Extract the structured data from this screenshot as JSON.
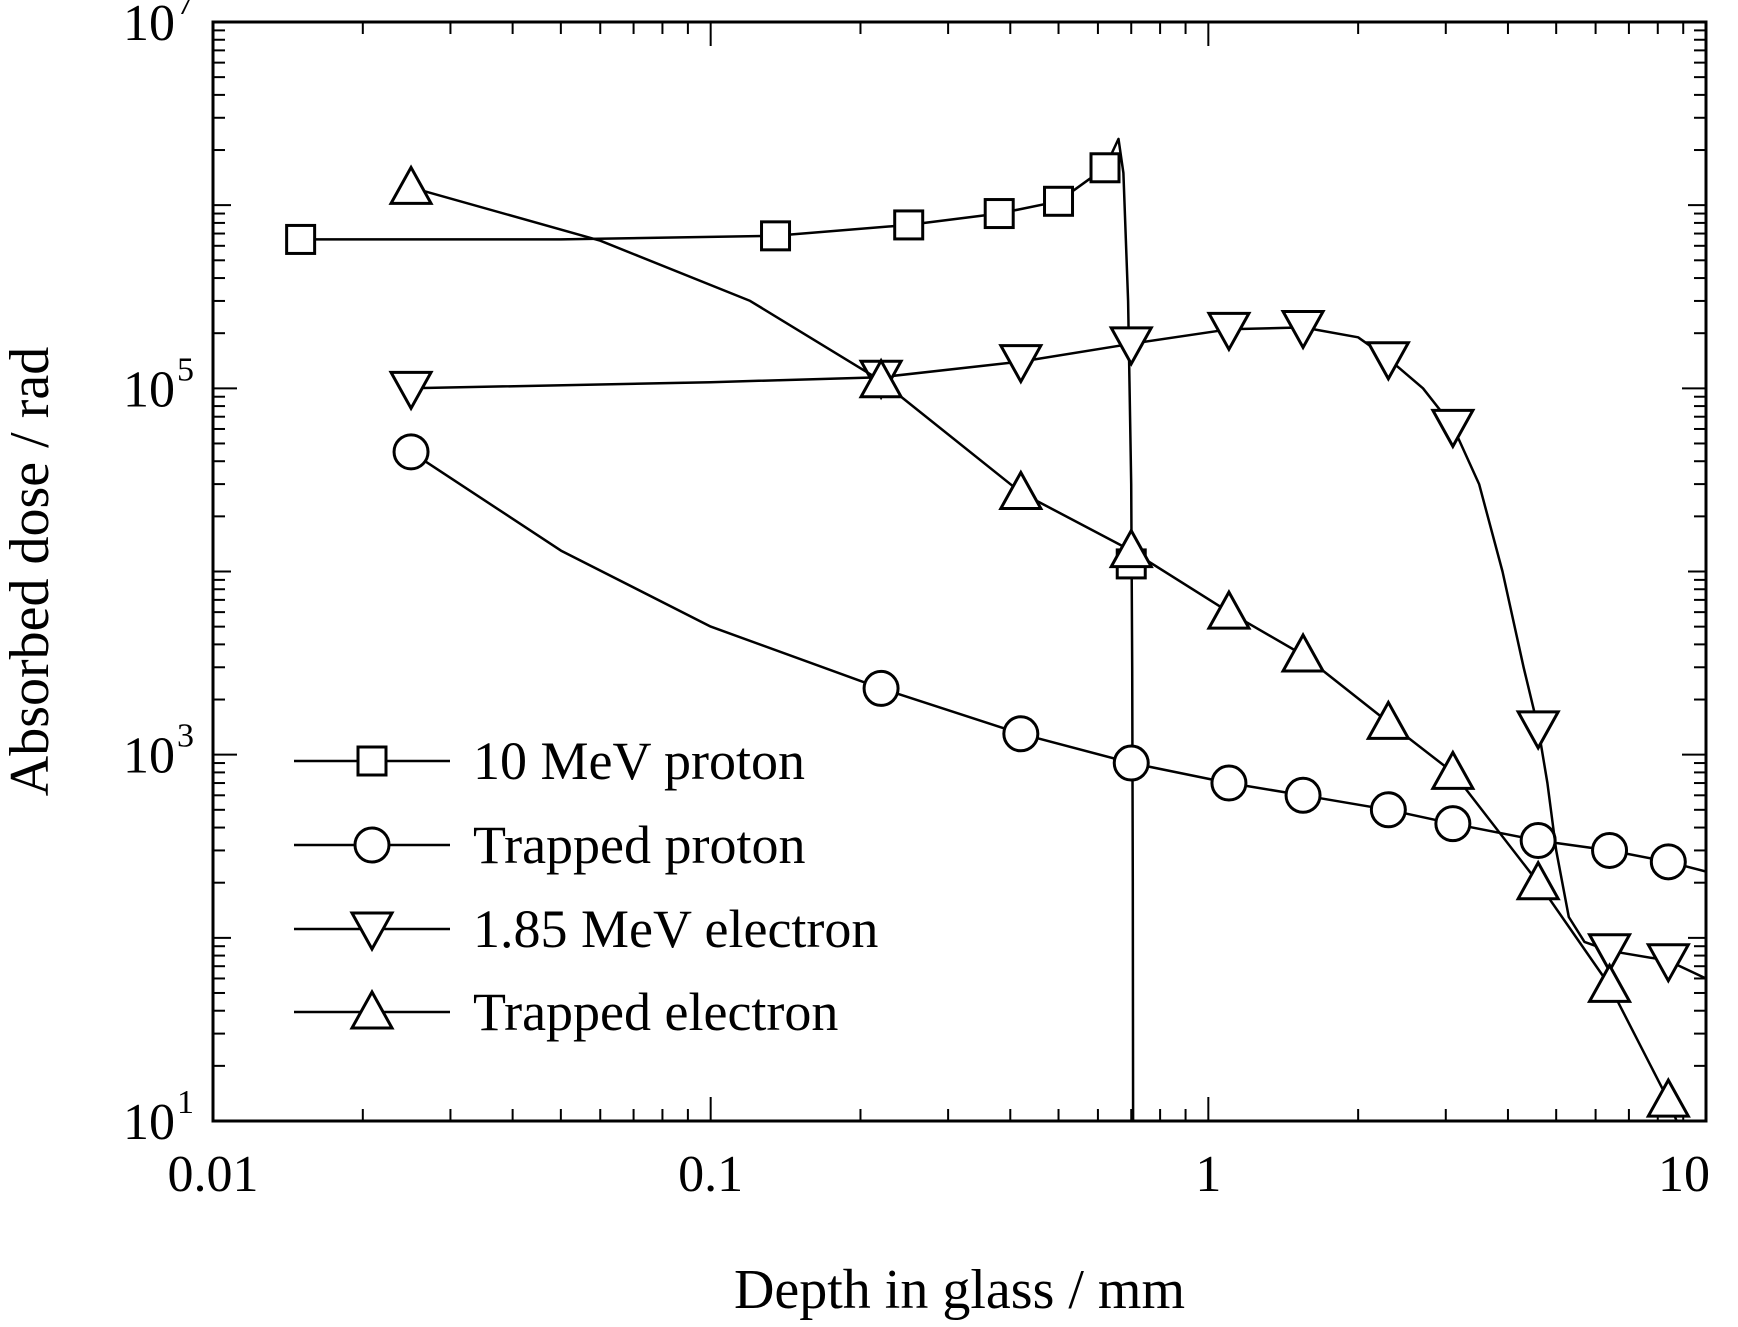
{
  "chart_data": {
    "type": "line",
    "xscale": "log",
    "yscale": "log",
    "xlim": [
      0.01,
      10
    ],
    "ylim": [
      10,
      10000000
    ],
    "xlabel": "Depth in glass / mm",
    "ylabel": "Absorbed dose / rad",
    "x_ticks": [
      {
        "value": 0.01,
        "label": "0.01"
      },
      {
        "value": 0.1,
        "label": "0.1"
      },
      {
        "value": 1,
        "label": "1"
      },
      {
        "value": 10,
        "label": "10"
      }
    ],
    "y_ticks": [
      {
        "value": 10,
        "base": "10",
        "exp": "1"
      },
      {
        "value": 1000,
        "base": "10",
        "exp": "3"
      },
      {
        "value": 100000,
        "base": "10",
        "exp": "5"
      },
      {
        "value": 10000000,
        "base": "10",
        "exp": "7"
      }
    ],
    "grid": false,
    "legend_position": "bottom-left",
    "series": [
      {
        "name": "10 MeV proton",
        "marker": "square",
        "points": [
          [
            0.015,
            650000
          ],
          [
            0.135,
            680000
          ],
          [
            0.25,
            780000
          ],
          [
            0.38,
            900000
          ],
          [
            0.5,
            1050000
          ],
          [
            0.62,
            1600000
          ]
        ],
        "curve": [
          [
            0.015,
            650000
          ],
          [
            0.05,
            650000
          ],
          [
            0.135,
            680000
          ],
          [
            0.25,
            780000
          ],
          [
            0.38,
            900000
          ],
          [
            0.5,
            1050000
          ],
          [
            0.62,
            1600000
          ],
          [
            0.66,
            2300000
          ],
          [
            0.675,
            1500000
          ],
          [
            0.69,
            300000
          ],
          [
            0.7,
            30000
          ],
          [
            0.703,
            3000
          ],
          [
            0.705,
            200
          ],
          [
            0.706,
            10
          ]
        ],
        "isolated_points": [
          [
            0.7,
            11000
          ]
        ]
      },
      {
        "name": "Trapped proton",
        "marker": "circle",
        "points": [
          [
            0.025,
            45000
          ],
          [
            0.22,
            2300
          ],
          [
            0.42,
            1300
          ],
          [
            0.7,
            900
          ],
          [
            1.1,
            700
          ],
          [
            1.55,
            600
          ],
          [
            2.3,
            500
          ],
          [
            3.1,
            420
          ],
          [
            4.6,
            340
          ],
          [
            6.4,
            300
          ],
          [
            8.4,
            260
          ]
        ],
        "curve": [
          [
            0.025,
            45000
          ],
          [
            0.05,
            13000
          ],
          [
            0.1,
            5000
          ],
          [
            0.22,
            2300
          ],
          [
            0.42,
            1300
          ],
          [
            0.7,
            900
          ],
          [
            1.1,
            700
          ],
          [
            1.55,
            600
          ],
          [
            2.3,
            500
          ],
          [
            3.1,
            420
          ],
          [
            4.6,
            340
          ],
          [
            6.4,
            300
          ],
          [
            8.4,
            260
          ],
          [
            10,
            230
          ]
        ]
      },
      {
        "name": "1.85 MeV electron",
        "marker": "triangle-down",
        "points": [
          [
            0.025,
            100000
          ],
          [
            0.22,
            115000
          ],
          [
            0.42,
            140000
          ],
          [
            0.7,
            175000
          ],
          [
            1.1,
            210000
          ],
          [
            1.55,
            215000
          ],
          [
            2.3,
            145000
          ],
          [
            3.1,
            62000
          ],
          [
            4.6,
            1400
          ],
          [
            6.4,
            85
          ],
          [
            8.4,
            75
          ]
        ],
        "curve": [
          [
            0.025,
            100000
          ],
          [
            0.1,
            108000
          ],
          [
            0.22,
            115000
          ],
          [
            0.42,
            140000
          ],
          [
            0.7,
            175000
          ],
          [
            1.1,
            210000
          ],
          [
            1.55,
            215000
          ],
          [
            2.0,
            190000
          ],
          [
            2.3,
            145000
          ],
          [
            2.7,
            100000
          ],
          [
            3.1,
            62000
          ],
          [
            3.5,
            30000
          ],
          [
            3.9,
            10000
          ],
          [
            4.3,
            3000
          ],
          [
            4.6,
            1400
          ],
          [
            4.8,
            700
          ],
          [
            5.0,
            300
          ],
          [
            5.3,
            130
          ],
          [
            5.7,
            95
          ],
          [
            6.4,
            85
          ],
          [
            8.4,
            75
          ],
          [
            10,
            60
          ]
        ]
      },
      {
        "name": "Trapped electron",
        "marker": "triangle-up",
        "points": [
          [
            0.025,
            1250000
          ],
          [
            0.22,
            110000
          ],
          [
            0.42,
            27000
          ],
          [
            0.7,
            13000
          ],
          [
            1.1,
            6000
          ],
          [
            1.55,
            3500
          ],
          [
            2.3,
            1500
          ],
          [
            3.1,
            800
          ],
          [
            4.6,
            200
          ],
          [
            6.4,
            55
          ],
          [
            8.4,
            13
          ]
        ],
        "curve": [
          [
            0.025,
            1250000
          ],
          [
            0.06,
            640000
          ],
          [
            0.12,
            300000
          ],
          [
            0.22,
            110000
          ],
          [
            0.42,
            27000
          ],
          [
            0.7,
            13000
          ],
          [
            1.1,
            6000
          ],
          [
            1.55,
            3500
          ],
          [
            2.3,
            1500
          ],
          [
            3.1,
            800
          ],
          [
            4.6,
            200
          ],
          [
            6.4,
            55
          ],
          [
            8.4,
            13
          ],
          [
            9.2,
            7
          ]
        ]
      }
    ]
  }
}
